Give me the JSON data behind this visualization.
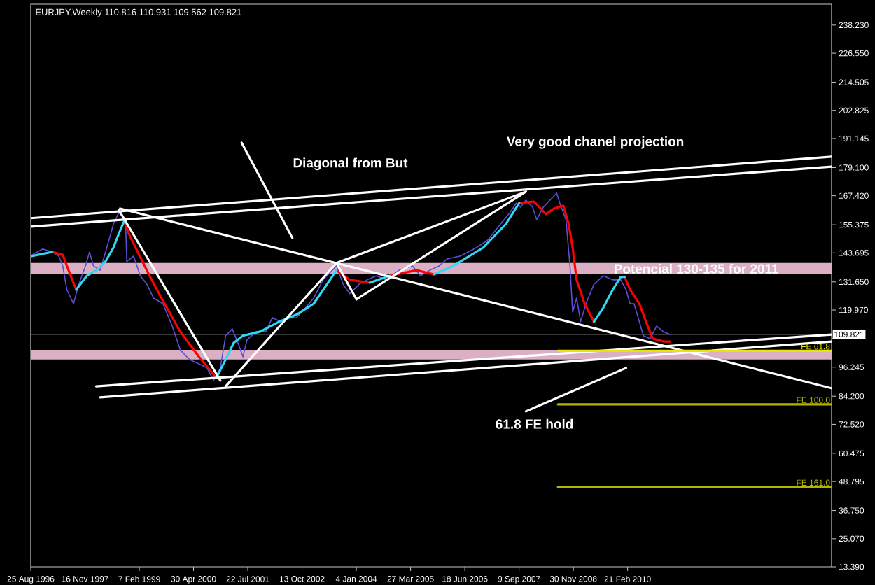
{
  "chart_data": {
    "type": "line",
    "title": "EURJPY,Weekly 110.816 110.931 109.562 109.821",
    "xlim": [
      "1996-08-25",
      "2014-10-02"
    ],
    "xticks": [
      {
        "value": "1996-08-25",
        "label": "25 Aug 1996"
      },
      {
        "value": "1997-11-16",
        "label": "16 Nov 1997"
      },
      {
        "value": "1999-02-07",
        "label": "7 Feb 1999"
      },
      {
        "value": "2000-04-30",
        "label": "30 Apr 2000"
      },
      {
        "value": "2001-07-22",
        "label": "22 Jul 2001"
      },
      {
        "value": "2002-10-13",
        "label": "13 Oct 2002"
      },
      {
        "value": "2004-01-04",
        "label": "4 Jan 2004"
      },
      {
        "value": "2005-03-27",
        "label": "27 Mar 2005"
      },
      {
        "value": "2006-06-18",
        "label": "18 Jun 2006"
      },
      {
        "value": "2007-09-09",
        "label": "9 Sep 2007"
      },
      {
        "value": "2008-11-30",
        "label": "30 Nov 2008"
      },
      {
        "value": "2010-02-21",
        "label": "21 Feb 2010"
      }
    ],
    "ylim": [
      13.39,
      246.9
    ],
    "yticks": [
      {
        "value": 238.23,
        "label": "238.230"
      },
      {
        "value": 226.55,
        "label": "226.550"
      },
      214.505,
      202.825,
      191.145,
      {
        "value": 179.1,
        "label": "179.100"
      },
      {
        "value": 167.42,
        "label": "167.420"
      },
      155.375,
      143.695,
      {
        "value": 131.65,
        "label": "131.650"
      },
      {
        "value": 119.97,
        "label": "119.970"
      },
      {
        "value": 108.29,
        "label": null
      },
      96.245,
      {
        "value": 84.2,
        "label": "84.200"
      },
      {
        "value": 72.52,
        "label": "72.520"
      },
      60.475,
      48.795,
      {
        "value": 36.75,
        "label": "36.750"
      },
      {
        "value": 25.07,
        "label": "25.070"
      },
      {
        "value": 13.39,
        "label": "13.390"
      }
    ],
    "series": [
      {
        "color": "#5b4fd6",
        "x": [
          "1996-09-05",
          "1996-12-02",
          "1997-02-17",
          "1997-04-13",
          "1997-05-16",
          "1997-06-19",
          "1997-08-13",
          "1997-09-26",
          "1997-11-20",
          "1997-12-23",
          "1998-01-25",
          "1998-03-21",
          "1998-05-15",
          "1998-07-09",
          "1998-08-22",
          "1998-10-16",
          "1998-10-27",
          "1998-12-22",
          "1999-02-15",
          "1999-04-11",
          "1999-06-05",
          "1999-08-21",
          "1999-11-06",
          "2000-01-11",
          "2000-03-28",
          "2000-06-14",
          "2000-08-19",
          "2000-10-13",
          "2000-12-07",
          "2001-01-20",
          "2001-03-16",
          "2001-05-10",
          "2001-06-12",
          "2001-07-15",
          "2001-09-30",
          "2001-12-17",
          "2002-02-10",
          "2002-04-17",
          "2002-06-11",
          "2002-08-27",
          "2002-11-12",
          "2003-01-17",
          "2003-04-04",
          "2003-07-24",
          "2003-09-17",
          "2003-11-11",
          "2004-01-27",
          "2004-04-02",
          "2004-06-18",
          "2004-09-03",
          "2004-12-23",
          "2005-04-12",
          "2005-06-17",
          "2005-09-02",
          "2005-11-18",
          "2006-01-23",
          "2006-05-13",
          "2006-09-01",
          "2006-12-20",
          "2007-04-09",
          "2007-06-25",
          "2007-08-19",
          "2007-09-21",
          "2007-11-04",
          "2007-12-30",
          "2008-02-01",
          "2008-03-27",
          "2008-05-21",
          "2008-07-15",
          "2008-08-17",
          "2008-09-30",
          "2008-11-02",
          "2008-11-24",
          "2008-12-27",
          "2009-01-29",
          "2009-03-14",
          "2009-05-19",
          "2009-08-04",
          "2009-10-21",
          "2009-12-26",
          "2010-02-08",
          "2010-03-13",
          "2010-04-15",
          "2010-05-29",
          "2010-07-01",
          "2010-08-25",
          "2010-10-19",
          "2010-12-13",
          "2011-02-06"
        ],
        "values": [
          142.9,
          145.3,
          144.1,
          142.4,
          138.3,
          128.4,
          122.6,
          130.7,
          138.3,
          144.1,
          138.3,
          136.5,
          145.9,
          155.7,
          160.4,
          157.5,
          140.1,
          142.4,
          134.2,
          130.7,
          124.9,
          122.6,
          113.3,
          103.4,
          99.4,
          97.6,
          95.9,
          90.7,
          95.9,
          109.3,
          112.1,
          105.2,
          100.5,
          107.5,
          111.0,
          111.0,
          116.8,
          115.1,
          116.8,
          116.8,
          120.9,
          124.9,
          132.5,
          138.3,
          130.7,
          126.7,
          130.7,
          132.5,
          134.2,
          132.5,
          136.5,
          138.3,
          134.2,
          136.5,
          138.3,
          141.2,
          142.4,
          145.3,
          148.8,
          155.7,
          160.4,
          164.4,
          162.7,
          165.6,
          162.7,
          157.5,
          162.7,
          165.6,
          168.5,
          163.3,
          157.5,
          138.3,
          119.1,
          124.9,
          115.1,
          122.6,
          130.7,
          134.2,
          132.5,
          132.5,
          128.4,
          122.6,
          122.6,
          115.1,
          109.3,
          108.1,
          113.3,
          111.0,
          109.8
        ]
      },
      {
        "color": "#ff0000",
        "x": [
          "1997-02-17",
          "1997-05-16",
          "1997-07-11",
          "1997-09-04",
          "1998-02-16",
          "1998-10-05",
          "1998-11-18",
          "1999-01-13",
          "1999-05-03",
          "1999-08-21",
          "2000-01-11",
          "2000-06-14",
          "2000-11-04",
          "2002-04-06",
          "2003-07-24",
          "2003-11-11",
          "2004-04-24",
          "2004-07-01",
          "2004-10-06",
          "2005-05-15",
          "2005-10-05",
          "2006-11-17",
          "2007-09-10",
          "2008-01-10",
          "2008-04-18",
          "2008-06-23",
          "2008-09-08",
          "2008-10-22",
          "2008-11-24",
          "2008-12-27",
          "2009-03-03",
          "2009-05-19",
          "2009-10-21",
          "2010-01-28",
          "2010-03-13",
          "2010-05-29",
          "2010-07-23",
          "2010-09-16",
          "2010-12-13",
          "2011-02-06"
        ],
        "values": [
          144.1,
          142.9,
          135.4,
          128.4,
          null,
          156.9,
          151.1,
          145.3,
          134.2,
          123.8,
          111.0,
          100.5,
          91.8,
          null,
          136.5,
          132.5,
          131.3,
          null,
          134.2,
          136.5,
          134.8,
          null,
          164.4,
          165.0,
          159.8,
          162.1,
          163.3,
          155.7,
          145.9,
          132.5,
          122.6,
          115.1,
          null,
          133.7,
          128.4,
          122.6,
          115.1,
          108.1,
          106.9,
          106.9
        ]
      },
      {
        "color": "#2fd8f5",
        "x": [
          "1996-08-25",
          "1997-02-17",
          "1997-05-16",
          "1997-09-04",
          "1997-12-01",
          "1998-02-16",
          "1998-05-04",
          "1998-07-09",
          "1998-08-22",
          "1998-10-05",
          "1999-08-21",
          "2000-11-04",
          "2001-01-20",
          "2001-03-27",
          "2001-06-12",
          "2001-11-02",
          "2002-04-06",
          "2002-08-27",
          "2003-01-17",
          "2003-05-07",
          "2003-07-24",
          "2003-11-11",
          "2004-04-24",
          "2004-10-06",
          "2005-05-15",
          "2005-10-05",
          "2006-01-23",
          "2006-05-13",
          "2006-11-17",
          "2007-05-23",
          "2007-09-10",
          "2008-06-23",
          "2009-05-19",
          "2009-08-04",
          "2009-10-21",
          "2009-12-26",
          "2010-01-28"
        ],
        "values": [
          142.3,
          144.1,
          null,
          128.4,
          134.2,
          136.5,
          140.1,
          145.9,
          151.7,
          156.9,
          null,
          91.8,
          99.4,
          106.3,
          109.3,
          111.0,
          115.1,
          118.0,
          122.6,
          130.7,
          136.5,
          null,
          131.3,
          134.2,
          null,
          134.8,
          137.1,
          140.1,
          145.9,
          155.7,
          164.4,
          null,
          115.1,
          120.9,
          128.4,
          133.7,
          133.7
        ]
      },
      {
        "color": "#ffffff",
        "x": [
          "1996-08-25",
          "2014-10-02"
        ],
        "values": [
          158.1,
          183.6
        ]
      },
      {
        "color": "#ffffff",
        "x": [
          "1996-08-25",
          "2014-10-02"
        ],
        "values": [
          154.6,
          179.5
        ]
      },
      {
        "color": "#ffffff",
        "x": [
          "1998-02-16",
          "2014-10-02"
        ],
        "values": [
          88.3,
          109.8
        ]
      },
      {
        "color": "#ffffff",
        "x": [
          "1998-03-21",
          "2014-10-02"
        ],
        "values": [
          83.7,
          106.9
        ]
      },
      {
        "color": "#ffffff",
        "x": [
          "1998-09-02",
          "2014-10-02"
        ],
        "values": [
          162.1,
          87.5
        ]
      },
      {
        "color": "#ffffff",
        "x": [
          "1998-08-22",
          "2000-12-07"
        ],
        "values": [
          161.5,
          90.7
        ]
      },
      {
        "color": "#ffffff",
        "x": [
          "2001-01-20",
          "2003-07-24"
        ],
        "values": [
          88.3,
          139.5
        ]
      },
      {
        "color": "#ffffff",
        "x": [
          "2003-07-24",
          "2004-01-05"
        ],
        "values": [
          139.5,
          124.4
        ]
      },
      {
        "color": "#ffffff",
        "x": [
          "2003-07-24",
          "2007-11-04"
        ],
        "values": [
          139.5,
          169.1
        ]
      },
      {
        "color": "#ffffff",
        "x": [
          "2004-01-05",
          "2007-11-04"
        ],
        "values": [
          124.4,
          169.1
        ]
      },
      {
        "color": "#ffffff",
        "x": [
          "2001-06-01",
          "2002-07-25"
        ],
        "values": [
          189.4,
          149.9
        ]
      },
      {
        "color": "#ffffff",
        "x": [
          "2007-11-04",
          "2010-02-08"
        ],
        "values": [
          77.9,
          95.9
        ]
      },
      {
        "name": "FE 61.8",
        "color": "#e6e600",
        "x": [
          "2008-07-26",
          "2014-10-02"
        ],
        "values": [
          103.0,
          103.0
        ]
      },
      {
        "name": "FE 100.0",
        "color": "#b4b400",
        "x": [
          "2008-07-26",
          "2014-10-02"
        ],
        "values": [
          80.8,
          80.8
        ]
      },
      {
        "name": "FE 161.0",
        "color": "#b4b400",
        "x": [
          "2008-07-26",
          "2014-10-02"
        ],
        "values": [
          46.5,
          46.5
        ]
      }
    ],
    "ref_lines": [
      {
        "axis": "y",
        "value": 109.821,
        "label": "109.821",
        "color": "#707070"
      }
    ],
    "bands": [
      {
        "axis": "y",
        "from": 134.8,
        "to": 139.5,
        "label": "Potencial 130-135 for 2011",
        "color": "#dcb0c4"
      },
      {
        "axis": "y",
        "from": 99.4,
        "to": 103.4,
        "color": "#dcb0c4"
      }
    ],
    "annotations": [
      "Diagonal from But",
      "Very good chanel projection",
      "61.8 FE hold"
    ]
  }
}
